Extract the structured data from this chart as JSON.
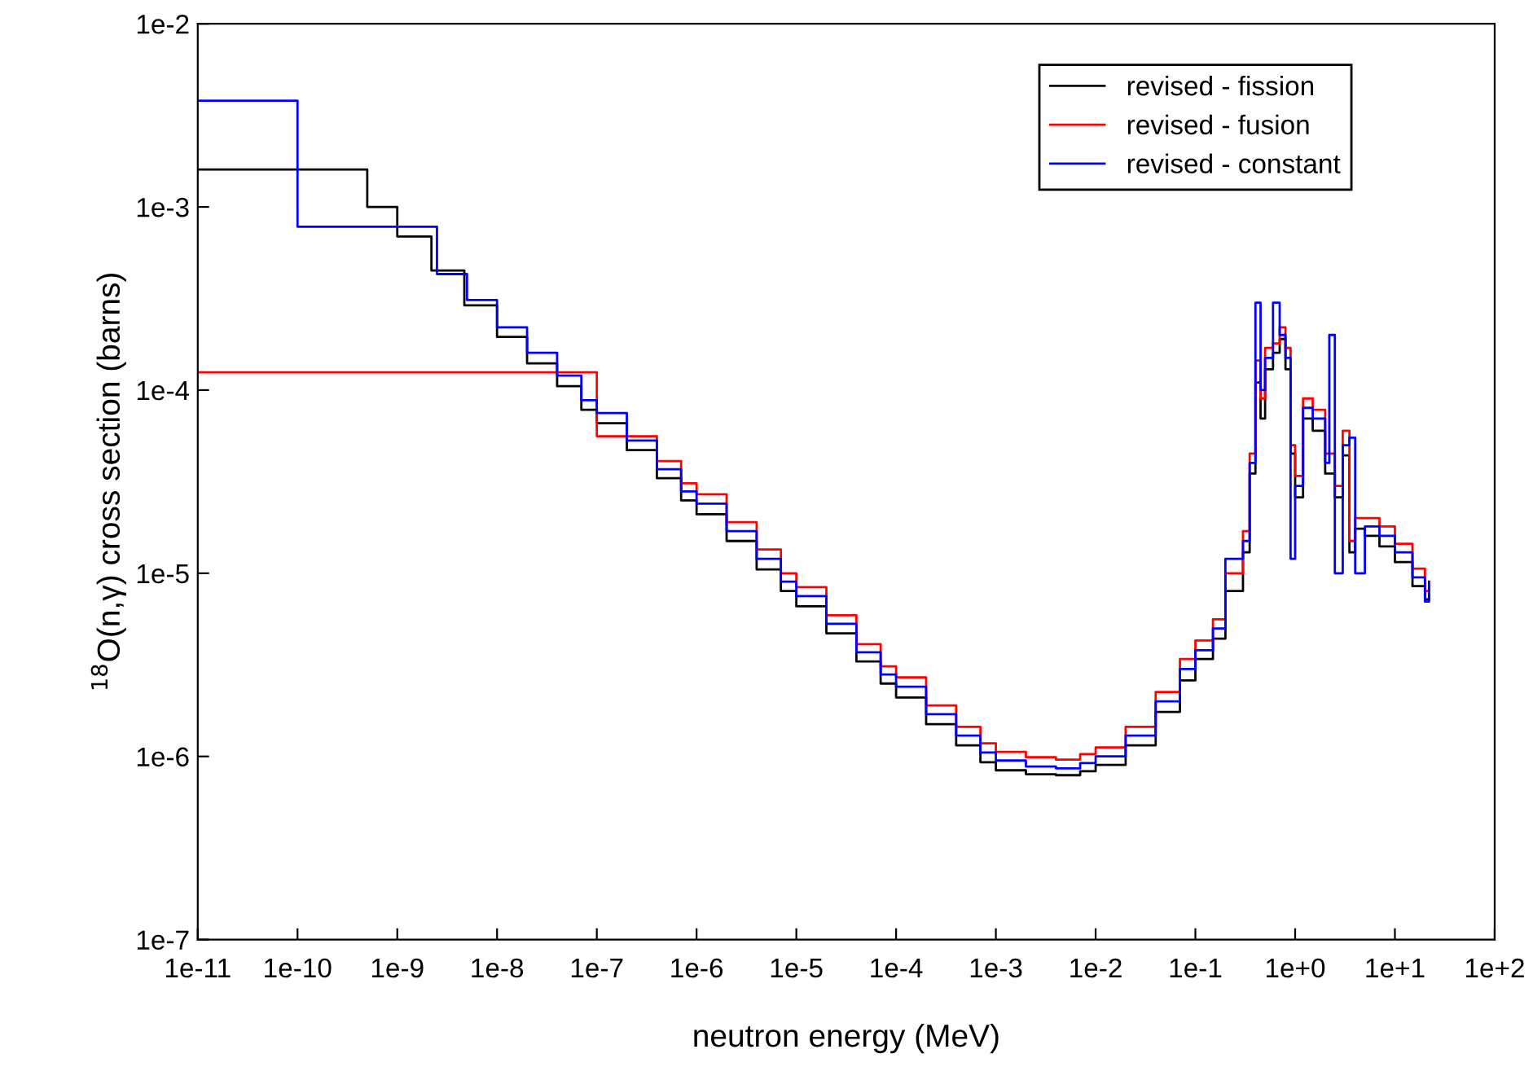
{
  "chart_data": {
    "type": "step",
    "log": "xy",
    "xlabel": "neutron energy (MeV)",
    "ylabel": "$^{18}$O(n,γ) cross section (barns)",
    "xlim": [
      1e-11,
      100
    ],
    "ylim": [
      1e-07,
      0.01
    ],
    "xticks": [
      {
        "value": 1e-11,
        "label": "1e-11"
      },
      {
        "value": 1e-10,
        "label": "1e-10"
      },
      {
        "value": 1e-09,
        "label": "1e-9"
      },
      {
        "value": 1e-08,
        "label": "1e-8"
      },
      {
        "value": 1e-07,
        "label": "1e-7"
      },
      {
        "value": 1e-06,
        "label": "1e-6"
      },
      {
        "value": 1e-05,
        "label": "1e-5"
      },
      {
        "value": 0.0001,
        "label": "1e-4"
      },
      {
        "value": 0.001,
        "label": "1e-3"
      },
      {
        "value": 0.01,
        "label": "1e-2"
      },
      {
        "value": 0.1,
        "label": "1e-1"
      },
      {
        "value": 1,
        "label": "1e+0"
      },
      {
        "value": 10,
        "label": "1e+1"
      },
      {
        "value": 100,
        "label": "1e+2"
      }
    ],
    "yticks": [
      {
        "value": 1e-07,
        "label": "1e-7"
      },
      {
        "value": 1e-06,
        "label": "1e-6"
      },
      {
        "value": 1e-05,
        "label": "1e-5"
      },
      {
        "value": 0.0001,
        "label": "1e-4"
      },
      {
        "value": 0.001,
        "label": "1e-3"
      },
      {
        "value": 0.01,
        "label": "1e-2"
      }
    ],
    "grid": false,
    "legend": "top right",
    "marker": "none",
    "line_style": "solid",
    "series": [
      {
        "name": "revised - fission",
        "color": "#000000",
        "x": [
          1e-11,
          5e-10,
          1e-09,
          2.2e-09,
          4.7e-09,
          1e-08,
          2e-08,
          4e-08,
          7e-08,
          1e-07,
          2e-07,
          4e-07,
          7e-07,
          1e-06,
          2e-06,
          4e-06,
          7e-06,
          1e-05,
          2e-05,
          4e-05,
          7e-05,
          0.0001,
          0.0002,
          0.0004,
          0.0007,
          0.001,
          0.002,
          0.004,
          0.007,
          0.01,
          0.02,
          0.04,
          0.07,
          0.1,
          0.15,
          0.2,
          0.3,
          0.35,
          0.4,
          0.45,
          0.5,
          0.6,
          0.7,
          0.8,
          0.9,
          1.0,
          1.2,
          1.5,
          2,
          2.5,
          3,
          3.5,
          4,
          5,
          7,
          10,
          15,
          20,
          22
        ],
        "values": [
          0.0016,
          0.001,
          0.00069,
          0.00045,
          0.00029,
          0.000195,
          0.00014,
          0.000105,
          7.8e-05,
          6.6e-05,
          4.7e-05,
          3.3e-05,
          2.5e-05,
          2.1e-05,
          1.5e-05,
          1.05e-05,
          8e-06,
          6.6e-06,
          4.7e-06,
          3.3e-06,
          2.5e-06,
          2.1e-06,
          1.5e-06,
          1.15e-06,
          9.3e-07,
          8.4e-07,
          8e-07,
          7.9e-07,
          8.3e-07,
          9e-07,
          1.15e-06,
          1.75e-06,
          2.6e-06,
          3.4e-06,
          4.4e-06,
          8e-06,
          1.3e-05,
          3.5e-05,
          0.00011,
          7e-05,
          0.00013,
          0.00016,
          0.00019,
          0.00013,
          4.5e-05,
          2.6e-05,
          7e-05,
          6e-05,
          3.5e-05,
          2.6e-05,
          4.4e-05,
          1.3e-05,
          1.75e-05,
          1.6e-05,
          1.4e-05,
          1.15e-05,
          8.5e-06,
          7.2e-06,
          7.6e-06
        ]
      },
      {
        "name": "revised - fusion",
        "color": "#ff0000",
        "x": [
          1e-11,
          1e-07,
          4e-07,
          7e-07,
          1e-06,
          2e-06,
          4e-06,
          7e-06,
          1e-05,
          2e-05,
          4e-05,
          7e-05,
          0.0001,
          0.0002,
          0.0004,
          0.0007,
          0.001,
          0.002,
          0.004,
          0.007,
          0.01,
          0.02,
          0.04,
          0.07,
          0.1,
          0.15,
          0.2,
          0.3,
          0.35,
          0.4,
          0.45,
          0.5,
          0.6,
          0.7,
          0.8,
          0.9,
          1.0,
          1.2,
          1.5,
          2,
          2.5,
          3,
          3.5,
          4,
          5,
          7,
          10,
          15,
          20,
          22
        ],
        "values": [
          0.000125,
          5.6e-05,
          4.1e-05,
          3.1e-05,
          2.7e-05,
          1.9e-05,
          1.35e-05,
          1e-05,
          8.4e-06,
          5.9e-06,
          4.1e-06,
          3.1e-06,
          2.7e-06,
          1.9e-06,
          1.45e-06,
          1.18e-06,
          1.06e-06,
          9.9e-07,
          9.6e-07,
          1.03e-06,
          1.12e-06,
          1.45e-06,
          2.25e-06,
          3.4e-06,
          4.3e-06,
          5.6e-06,
          1e-05,
          1.7e-05,
          4.5e-05,
          0.000145,
          9e-05,
          0.00017,
          0.00018,
          0.00022,
          0.00017,
          5e-05,
          3.4e-05,
          9e-05,
          7.8e-05,
          4.5e-05,
          3e-05,
          6e-05,
          1.5e-05,
          2e-05,
          2e-05,
          1.8e-05,
          1.45e-05,
          1.06e-05,
          8e-06,
          8.5e-06
        ]
      },
      {
        "name": "revised - constant",
        "color": "#0000ff",
        "x": [
          1e-11,
          1e-10,
          2.5e-09,
          5e-09,
          1e-08,
          2e-08,
          4e-08,
          7e-08,
          1e-07,
          2e-07,
          4e-07,
          7e-07,
          1e-06,
          2e-06,
          4e-06,
          7e-06,
          1e-05,
          2e-05,
          4e-05,
          7e-05,
          0.0001,
          0.0002,
          0.0004,
          0.0007,
          0.001,
          0.002,
          0.004,
          0.007,
          0.01,
          0.02,
          0.04,
          0.07,
          0.1,
          0.15,
          0.2,
          0.3,
          0.35,
          0.4,
          0.45,
          0.5,
          0.6,
          0.7,
          0.8,
          0.9,
          1.0,
          1.2,
          1.5,
          2,
          2.2,
          2.5,
          3,
          3.5,
          4,
          5,
          7,
          10,
          15,
          20,
          22
        ],
        "values": [
          0.0038,
          0.00078,
          0.00043,
          0.00031,
          0.00022,
          0.00016,
          0.00012,
          8.8e-05,
          7.5e-05,
          5.3e-05,
          3.7e-05,
          2.8e-05,
          2.4e-05,
          1.7e-05,
          1.2e-05,
          9e-06,
          7.5e-06,
          5.3e-06,
          3.7e-06,
          2.8e-06,
          2.4e-06,
          1.7e-06,
          1.3e-06,
          1.05e-06,
          9.5e-07,
          8.8e-07,
          8.6e-07,
          9.2e-07,
          1e-06,
          1.3e-06,
          2e-06,
          3e-06,
          3.8e-06,
          5e-06,
          1.2e-05,
          1.5e-05,
          4e-05,
          0.0003,
          0.0001,
          0.00015,
          0.0003,
          0.0002,
          0.00015,
          1.2e-05,
          3e-05,
          8e-05,
          7e-05,
          4e-05,
          0.0002,
          1e-05,
          5e-05,
          5.5e-05,
          1e-05,
          1.8e-05,
          1.6e-05,
          1.3e-05,
          9.5e-06,
          7e-06,
          9e-06
        ]
      }
    ]
  }
}
